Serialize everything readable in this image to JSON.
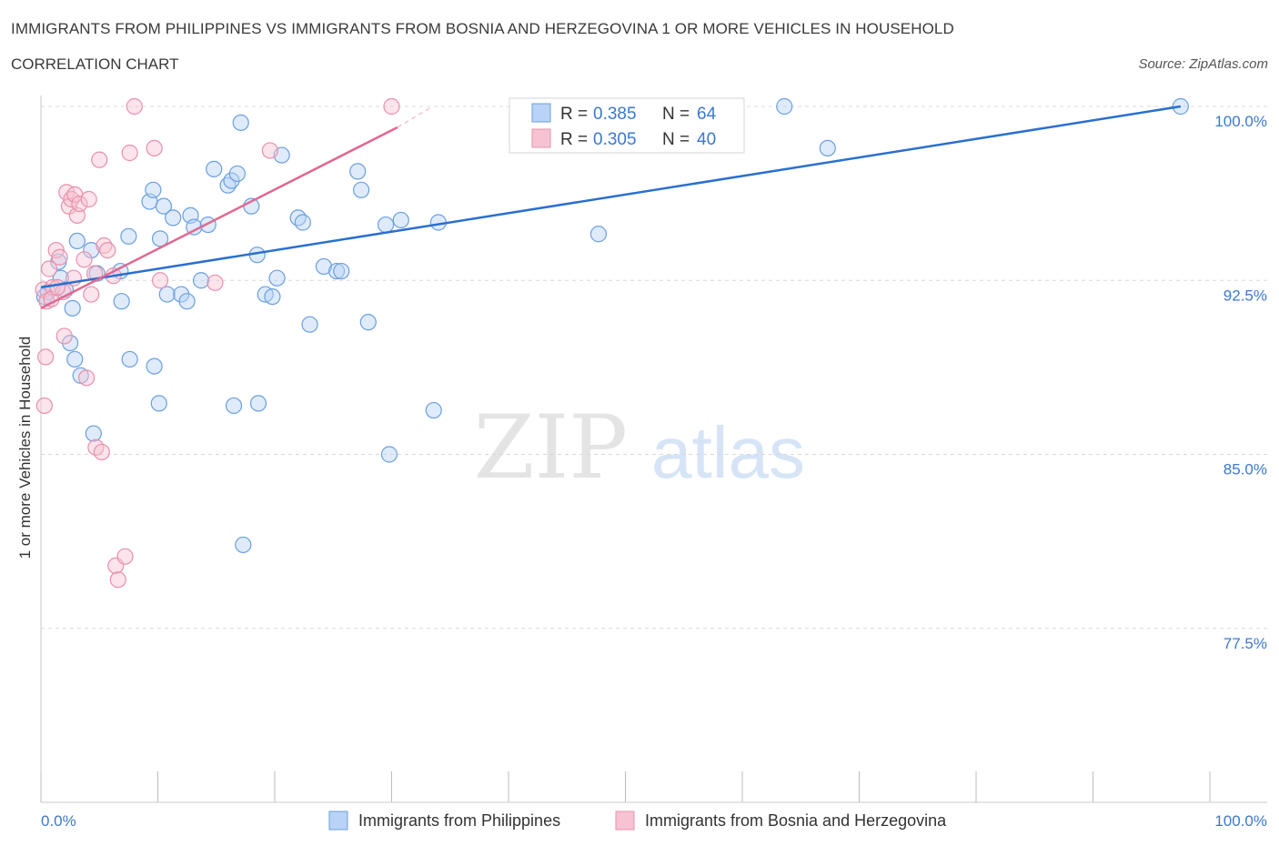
{
  "header": {
    "title": "IMMIGRANTS FROM PHILIPPINES VS IMMIGRANTS FROM BOSNIA AND HERZEGOVINA 1 OR MORE VEHICLES IN HOUSEHOLD",
    "subtitle": "CORRELATION CHART",
    "source": "Source: ZipAtlas.com"
  },
  "watermark": {
    "zip": "ZIP",
    "atlas": "atlas"
  },
  "colors": {
    "blue": "#6a9fe0",
    "blue_fill": "#b8d3f6",
    "blue_line": "#2a6fd0",
    "pink": "#e890aa",
    "pink_fill": "#f7c3d3",
    "pink_line": "#e06890",
    "tick_label": "#3b78d0",
    "grid": "#d8d8d8"
  },
  "legend_box": {
    "rows": [
      {
        "r_label": "R = ",
        "r_value": "0.385",
        "n_label": "N = ",
        "n_value": "64"
      },
      {
        "r_label": "R = ",
        "r_value": "0.305",
        "n_label": "N = ",
        "n_value": "40"
      }
    ]
  },
  "chart_data": {
    "type": "scatter",
    "title": "IMMIGRANTS FROM PHILIPPINES VS IMMIGRANTS FROM BOSNIA AND HERZEGOVINA 1 OR MORE VEHICLES IN HOUSEHOLD",
    "xlabel": "",
    "ylabel": "1 or more Vehicles in Household",
    "xlim": [
      0,
      100
    ],
    "ylim": [
      70,
      100
    ],
    "x_tick_labels": [
      "0.0%",
      "100.0%"
    ],
    "y_ticks": [
      77.5,
      85.0,
      92.5,
      100.0
    ],
    "y_tick_labels": [
      "77.5%",
      "85.0%",
      "92.5%",
      "100.0%"
    ],
    "grid": true,
    "legend_position": "bottom",
    "series": [
      {
        "name": "Immigrants from Philippines",
        "color": "blue",
        "r": 0.385,
        "n": 64,
        "trend": [
          [
            0,
            92.2
          ],
          [
            97.5,
            100.0
          ]
        ],
        "points": [
          [
            0.3,
            91.8
          ],
          [
            0.6,
            92.0
          ],
          [
            1.5,
            93.3
          ],
          [
            1.7,
            92.6
          ],
          [
            2.1,
            92.1
          ],
          [
            2.7,
            91.3
          ],
          [
            3.1,
            94.2
          ],
          [
            4.3,
            93.8
          ],
          [
            4.8,
            92.8
          ],
          [
            6.8,
            92.9
          ],
          [
            6.9,
            91.6
          ],
          [
            7.5,
            94.4
          ],
          [
            9.3,
            95.9
          ],
          [
            9.6,
            96.4
          ],
          [
            10.2,
            94.3
          ],
          [
            10.5,
            95.7
          ],
          [
            10.8,
            91.9
          ],
          [
            11.3,
            95.2
          ],
          [
            12.0,
            91.9
          ],
          [
            12.5,
            91.6
          ],
          [
            12.8,
            95.3
          ],
          [
            13.1,
            94.8
          ],
          [
            13.7,
            92.5
          ],
          [
            14.3,
            94.9
          ],
          [
            14.8,
            97.3
          ],
          [
            16.0,
            96.6
          ],
          [
            16.3,
            96.8
          ],
          [
            16.8,
            97.1
          ],
          [
            17.1,
            99.3
          ],
          [
            18.0,
            95.7
          ],
          [
            18.5,
            93.6
          ],
          [
            19.2,
            91.9
          ],
          [
            19.8,
            91.8
          ],
          [
            20.2,
            92.6
          ],
          [
            20.6,
            97.9
          ],
          [
            22.0,
            95.2
          ],
          [
            22.4,
            95.0
          ],
          [
            23.0,
            90.6
          ],
          [
            24.2,
            93.1
          ],
          [
            25.3,
            92.9
          ],
          [
            25.7,
            92.9
          ],
          [
            27.1,
            97.2
          ],
          [
            27.4,
            96.4
          ],
          [
            28.0,
            90.7
          ],
          [
            29.5,
            94.9
          ],
          [
            29.8,
            85.0
          ],
          [
            30.8,
            95.1
          ],
          [
            33.6,
            86.9
          ],
          [
            34.0,
            95.0
          ],
          [
            47.7,
            94.5
          ],
          [
            58.8,
            100.0
          ],
          [
            63.6,
            100.0
          ],
          [
            67.3,
            98.2
          ],
          [
            97.5,
            100.0
          ],
          [
            2.5,
            89.8
          ],
          [
            2.9,
            89.1
          ],
          [
            3.4,
            88.4
          ],
          [
            4.5,
            85.9
          ],
          [
            7.6,
            89.1
          ],
          [
            9.7,
            88.8
          ],
          [
            10.1,
            87.2
          ],
          [
            16.5,
            87.1
          ],
          [
            17.3,
            81.1
          ],
          [
            18.6,
            87.2
          ]
        ]
      },
      {
        "name": "Immigrants from Bosnia and Herzegovina",
        "color": "pink",
        "r": 0.305,
        "n": 40,
        "trend": [
          [
            0,
            91.3
          ],
          [
            30.5,
            99.1
          ]
        ],
        "points": [
          [
            0.2,
            92.1
          ],
          [
            0.5,
            91.6
          ],
          [
            0.7,
            93.0
          ],
          [
            1.0,
            92.2
          ],
          [
            1.3,
            93.8
          ],
          [
            1.6,
            93.5
          ],
          [
            1.9,
            92.0
          ],
          [
            2.2,
            96.3
          ],
          [
            2.4,
            95.7
          ],
          [
            2.6,
            96.0
          ],
          [
            2.9,
            96.2
          ],
          [
            3.1,
            95.3
          ],
          [
            3.3,
            95.8
          ],
          [
            3.7,
            93.4
          ],
          [
            4.1,
            96.0
          ],
          [
            4.3,
            91.9
          ],
          [
            4.6,
            92.8
          ],
          [
            5.0,
            97.7
          ],
          [
            5.4,
            94.0
          ],
          [
            5.7,
            93.8
          ],
          [
            6.2,
            92.7
          ],
          [
            7.6,
            98.0
          ],
          [
            8.0,
            100.0
          ],
          [
            9.7,
            98.2
          ],
          [
            10.2,
            92.5
          ],
          [
            14.9,
            92.4
          ],
          [
            19.6,
            98.1
          ],
          [
            30.0,
            100.0
          ],
          [
            0.4,
            89.2
          ],
          [
            0.3,
            87.1
          ],
          [
            2.0,
            90.1
          ],
          [
            3.9,
            88.3
          ],
          [
            4.7,
            85.3
          ],
          [
            5.2,
            85.1
          ],
          [
            6.4,
            80.2
          ],
          [
            6.6,
            79.6
          ],
          [
            7.2,
            80.6
          ],
          [
            0.9,
            91.7
          ],
          [
            1.4,
            92.2
          ],
          [
            2.8,
            92.6
          ]
        ]
      }
    ]
  }
}
